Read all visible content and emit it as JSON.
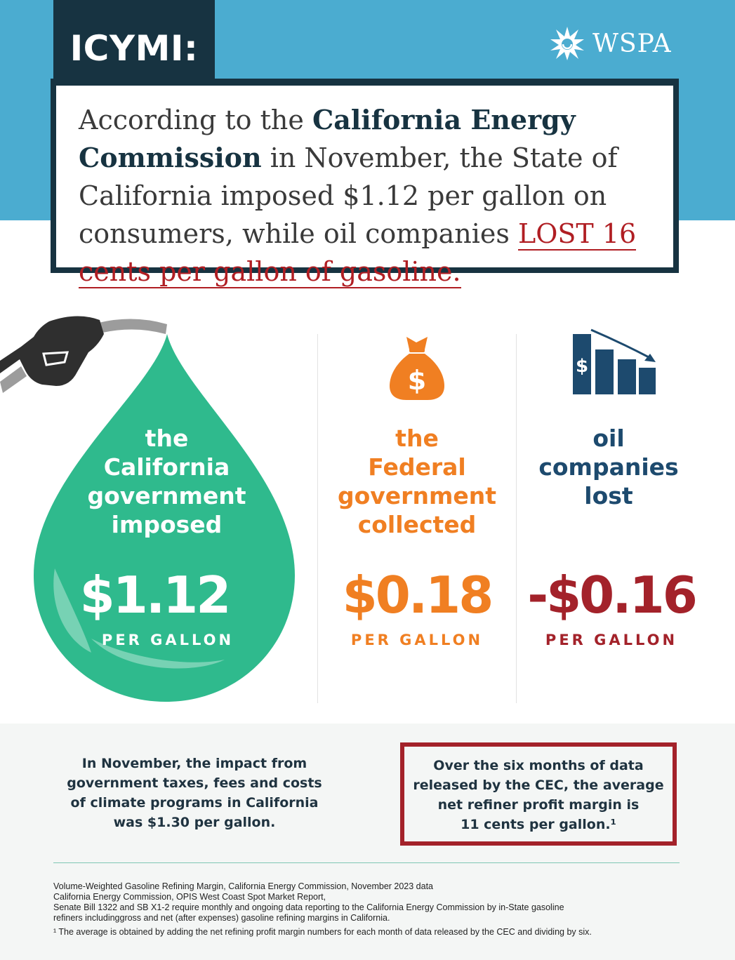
{
  "header": {
    "icymi": "ICYMI:",
    "logo_text": "WSPA",
    "logo_icon": "starburst-icon"
  },
  "quote": {
    "part1": "According to the ",
    "cec": "California Energy Commission",
    "part2": " in November, the State of California imposed $1.12 per gallon on consumers, while oil companies ",
    "lost": "LOST 16 cents per gallon of gasoline."
  },
  "columns": {
    "california": {
      "line1": "the",
      "line2": "California",
      "line3": "government",
      "line4": "imposed",
      "value": "$1.12",
      "unit": "PER GALLON",
      "color": "#2fba8d"
    },
    "federal": {
      "line1": "the",
      "line2": "Federal",
      "line3": "government",
      "line4": "collected",
      "value": "$0.18",
      "unit": "PER GALLON",
      "icon": "money-bag-icon",
      "icon_text": "$",
      "color": "#f07f22"
    },
    "oil": {
      "line1": "oil",
      "line2": "companies",
      "line3": "lost",
      "value": "-$0.16",
      "unit": "PER GALLON",
      "icon": "declining-bar-chart-icon",
      "icon_text": "$",
      "color": "#a3222a",
      "text_color": "#1d4a6e"
    }
  },
  "impact": {
    "line1": "In November, the impact from",
    "line2": "government taxes, fees and costs",
    "line3": "of climate programs in California",
    "line4": "was $1.30 per gallon."
  },
  "margin": {
    "line1": "Over the six months of data",
    "line2": "released by the CEC, the average",
    "line3": "net refiner profit margin is",
    "line4": "11 cents per gallon.¹"
  },
  "sources": {
    "s1": "Volume-Weighted Gasoline Refining Margin, California Energy Commission, November 2023 data",
    "s2": "California Energy Commission, OPIS West Coast Spot Market Report,",
    "s3": "Senate Bill 1322 and SB X1-2 require monthly and ongoing data reporting to the California Energy Commission by in-State gasoline",
    "s4": "refiners includinggross and net (after expenses) gasoline refining margins in California.",
    "footnote": "¹ The average is obtained by adding the net refining profit margin numbers for each month of data released by the CEC and dividing by six."
  }
}
